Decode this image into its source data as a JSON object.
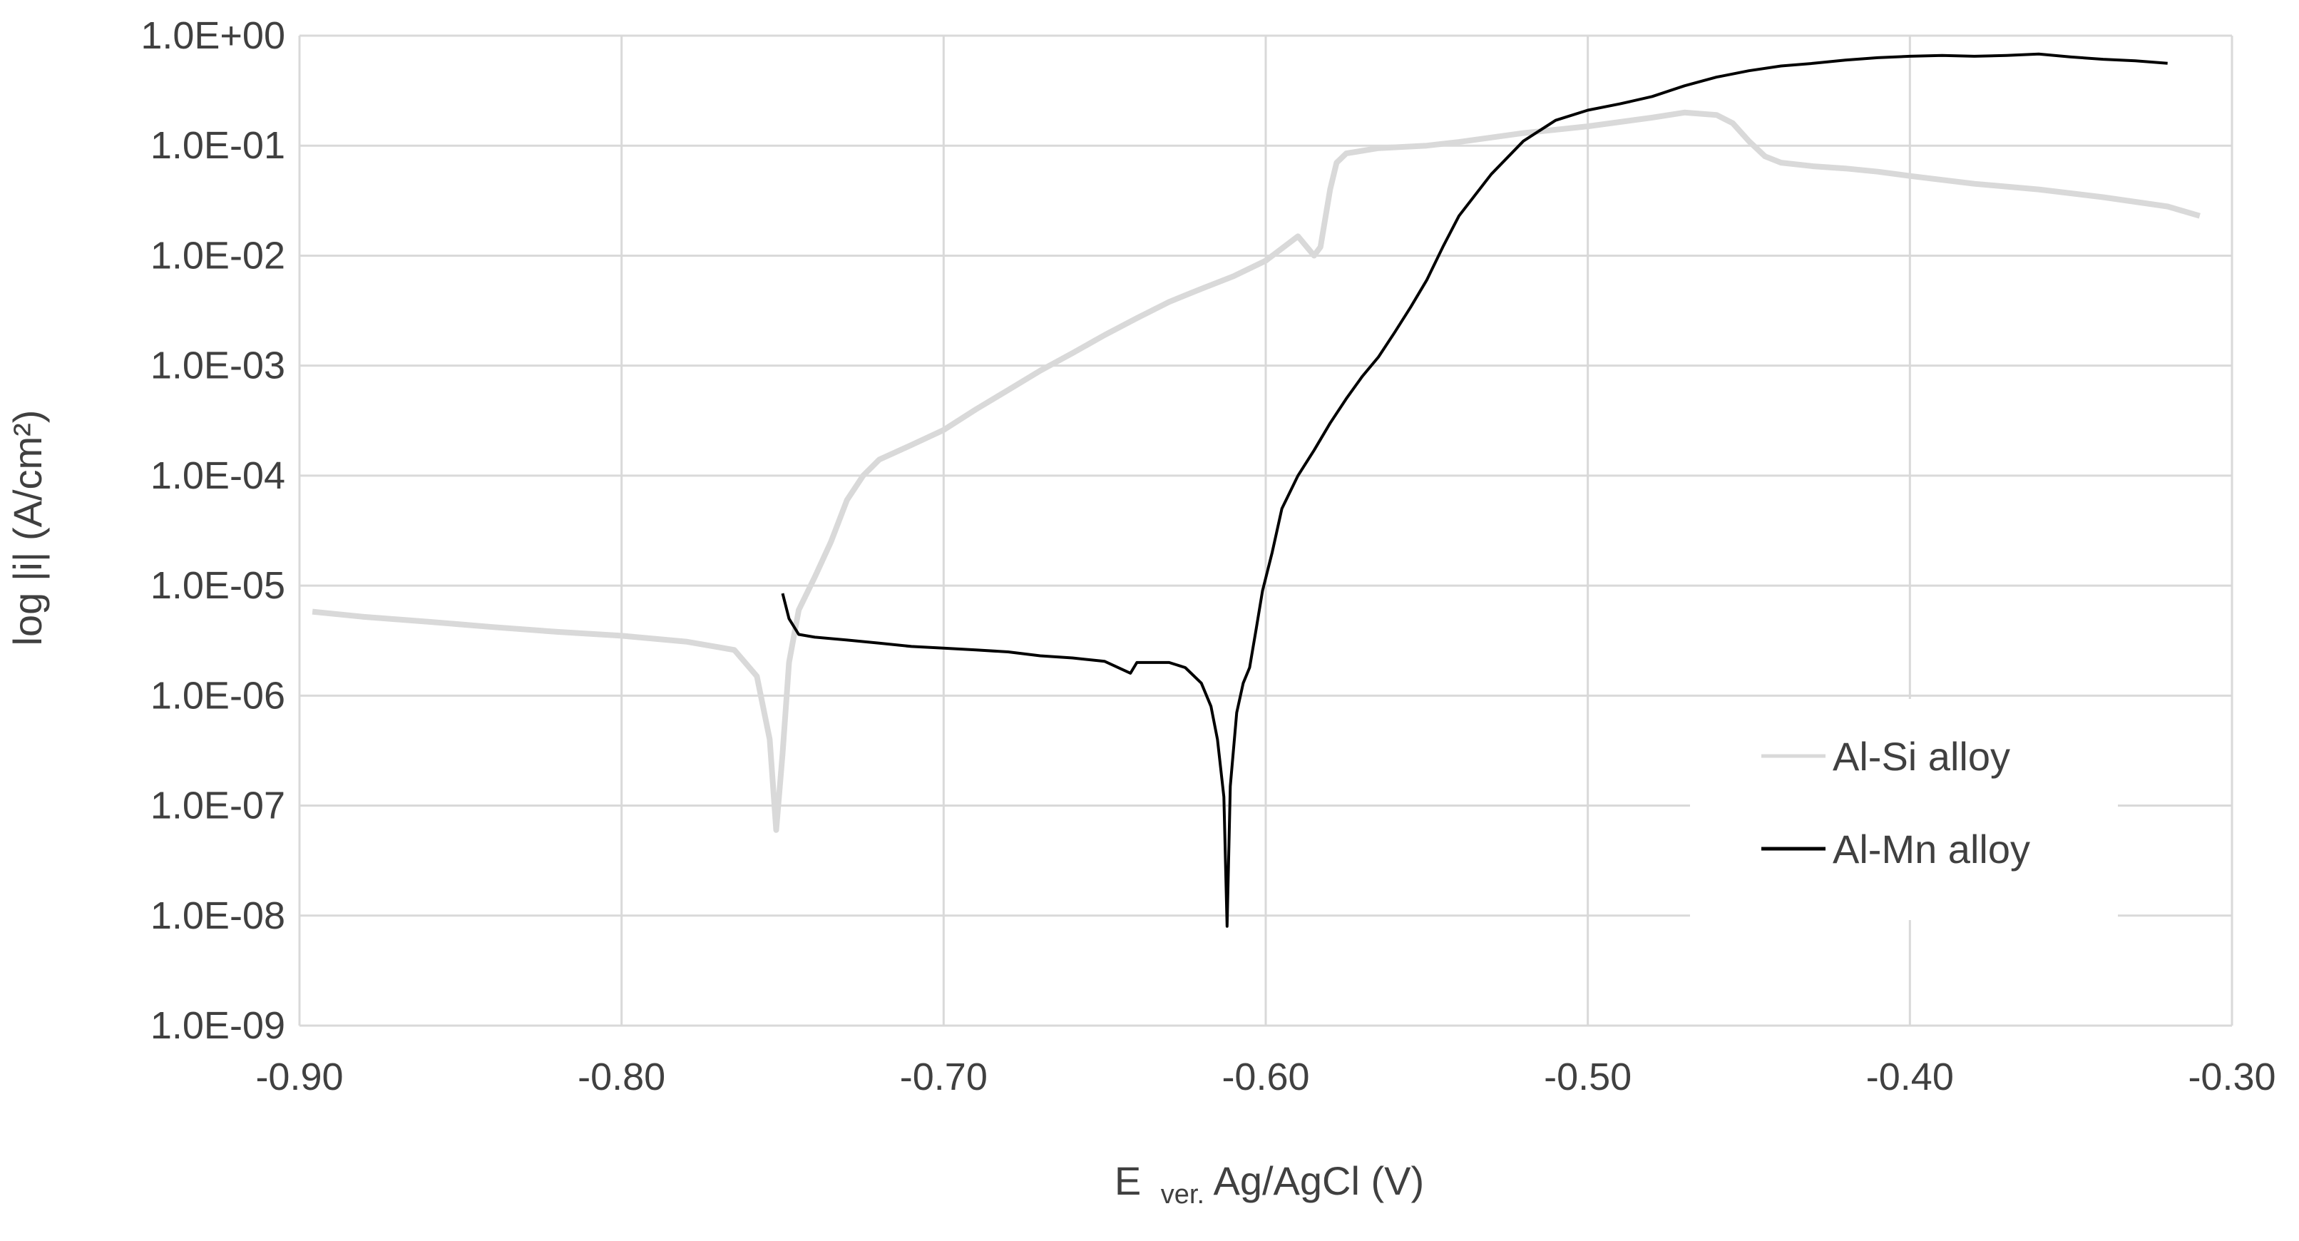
{
  "chart_data": {
    "type": "line",
    "title": "",
    "xlabel": {
      "main": "E",
      "sub": "ver.",
      "rest": " Ag/AgCl (V)"
    },
    "ylabel": "log |i| (A/cm²)",
    "xlim": [
      -0.9,
      -0.3
    ],
    "ylim": [
      1e-09,
      1
    ],
    "y_scale": "log",
    "grid": true,
    "legend_position": "right",
    "x_ticks": [
      "-0.90",
      "-0.80",
      "-0.70",
      "-0.60",
      "-0.50",
      "-0.40",
      "-0.30"
    ],
    "y_ticks": [
      "1.0E-09",
      "1.0E-08",
      "1.0E-07",
      "1.0E-06",
      "1.0E-05",
      "1.0E-04",
      "1.0E-03",
      "1.0E-02",
      "1.0E-01",
      "1.0E+00"
    ],
    "series": [
      {
        "name": "Al-Si alloy",
        "color": "#d9d9d9",
        "points": [
          [
            -0.896,
            5.8e-06
          ],
          [
            -0.88,
            5.2e-06
          ],
          [
            -0.86,
            4.7e-06
          ],
          [
            -0.84,
            4.2e-06
          ],
          [
            -0.82,
            3.8e-06
          ],
          [
            -0.8,
            3.5e-06
          ],
          [
            -0.78,
            3.1e-06
          ],
          [
            -0.765,
            2.6e-06
          ],
          [
            -0.758,
            1.5e-06
          ],
          [
            -0.754,
            4e-07
          ],
          [
            -0.752,
            6e-08
          ],
          [
            -0.75,
            3e-07
          ],
          [
            -0.748,
            2e-06
          ],
          [
            -0.745,
            6e-06
          ],
          [
            -0.74,
            1.2e-05
          ],
          [
            -0.735,
            2.5e-05
          ],
          [
            -0.73,
            6e-05
          ],
          [
            -0.725,
            0.0001
          ],
          [
            -0.72,
            0.00014
          ],
          [
            -0.71,
            0.00019
          ],
          [
            -0.7,
            0.00026
          ],
          [
            -0.69,
            0.0004
          ],
          [
            -0.68,
            0.0006
          ],
          [
            -0.67,
            0.0009
          ],
          [
            -0.66,
            0.0013
          ],
          [
            -0.65,
            0.0019
          ],
          [
            -0.64,
            0.0027
          ],
          [
            -0.63,
            0.0038
          ],
          [
            -0.62,
            0.005
          ],
          [
            -0.61,
            0.0065
          ],
          [
            -0.6,
            0.009
          ],
          [
            -0.59,
            0.015
          ],
          [
            -0.585,
            0.01
          ],
          [
            -0.583,
            0.012
          ],
          [
            -0.58,
            0.04
          ],
          [
            -0.578,
            0.07
          ],
          [
            -0.575,
            0.085
          ],
          [
            -0.565,
            0.095
          ],
          [
            -0.55,
            0.1
          ],
          [
            -0.54,
            0.108
          ],
          [
            -0.52,
            0.13
          ],
          [
            -0.5,
            0.15
          ],
          [
            -0.48,
            0.18
          ],
          [
            -0.47,
            0.2
          ],
          [
            -0.46,
            0.19
          ],
          [
            -0.455,
            0.16
          ],
          [
            -0.45,
            0.11
          ],
          [
            -0.445,
            0.08
          ],
          [
            -0.44,
            0.07
          ],
          [
            -0.43,
            0.065
          ],
          [
            -0.42,
            0.062
          ],
          [
            -0.41,
            0.058
          ],
          [
            -0.4,
            0.053
          ],
          [
            -0.38,
            0.045
          ],
          [
            -0.36,
            0.04
          ],
          [
            -0.34,
            0.034
          ],
          [
            -0.32,
            0.028
          ],
          [
            -0.31,
            0.023
          ]
        ]
      },
      {
        "name": "Al-Mn alloy",
        "color": "#000000",
        "points": [
          [
            -0.75,
            8.5e-06
          ],
          [
            -0.748,
            5e-06
          ],
          [
            -0.745,
            3.6e-06
          ],
          [
            -0.74,
            3.4e-06
          ],
          [
            -0.73,
            3.2e-06
          ],
          [
            -0.72,
            3e-06
          ],
          [
            -0.71,
            2.8e-06
          ],
          [
            -0.7,
            2.7e-06
          ],
          [
            -0.69,
            2.6e-06
          ],
          [
            -0.68,
            2.5e-06
          ],
          [
            -0.67,
            2.3e-06
          ],
          [
            -0.66,
            2.2e-06
          ],
          [
            -0.65,
            2.05e-06
          ],
          [
            -0.642,
            1.6e-06
          ],
          [
            -0.64,
            2e-06
          ],
          [
            -0.63,
            2e-06
          ],
          [
            -0.625,
            1.8e-06
          ],
          [
            -0.62,
            1.3e-06
          ],
          [
            -0.617,
            8e-07
          ],
          [
            -0.615,
            4e-07
          ],
          [
            -0.613,
            1.2e-07
          ],
          [
            -0.612,
            8e-09
          ],
          [
            -0.611,
            1.5e-07
          ],
          [
            -0.609,
            7e-07
          ],
          [
            -0.607,
            1.3e-06
          ],
          [
            -0.605,
            1.8e-06
          ],
          [
            -0.603,
            4e-06
          ],
          [
            -0.601,
            9e-06
          ],
          [
            -0.598,
            2e-05
          ],
          [
            -0.595,
            5e-05
          ],
          [
            -0.59,
            0.0001
          ],
          [
            -0.585,
            0.00017
          ],
          [
            -0.58,
            0.0003
          ],
          [
            -0.575,
            0.0005
          ],
          [
            -0.57,
            0.0008
          ],
          [
            -0.565,
            0.0012
          ],
          [
            -0.56,
            0.002
          ],
          [
            -0.555,
            0.0034
          ],
          [
            -0.55,
            0.006
          ],
          [
            -0.545,
            0.012
          ],
          [
            -0.54,
            0.023
          ],
          [
            -0.53,
            0.055
          ],
          [
            -0.52,
            0.11
          ],
          [
            -0.51,
            0.17
          ],
          [
            -0.5,
            0.21
          ],
          [
            -0.49,
            0.24
          ],
          [
            -0.48,
            0.28
          ],
          [
            -0.47,
            0.35
          ],
          [
            -0.46,
            0.42
          ],
          [
            -0.45,
            0.48
          ],
          [
            -0.44,
            0.53
          ],
          [
            -0.43,
            0.56
          ],
          [
            -0.42,
            0.6
          ],
          [
            -0.41,
            0.63
          ],
          [
            -0.4,
            0.65
          ],
          [
            -0.39,
            0.66
          ],
          [
            -0.38,
            0.65
          ],
          [
            -0.37,
            0.66
          ],
          [
            -0.36,
            0.68
          ],
          [
            -0.35,
            0.64
          ],
          [
            -0.34,
            0.61
          ],
          [
            -0.33,
            0.59
          ],
          [
            -0.32,
            0.56
          ]
        ]
      }
    ]
  }
}
